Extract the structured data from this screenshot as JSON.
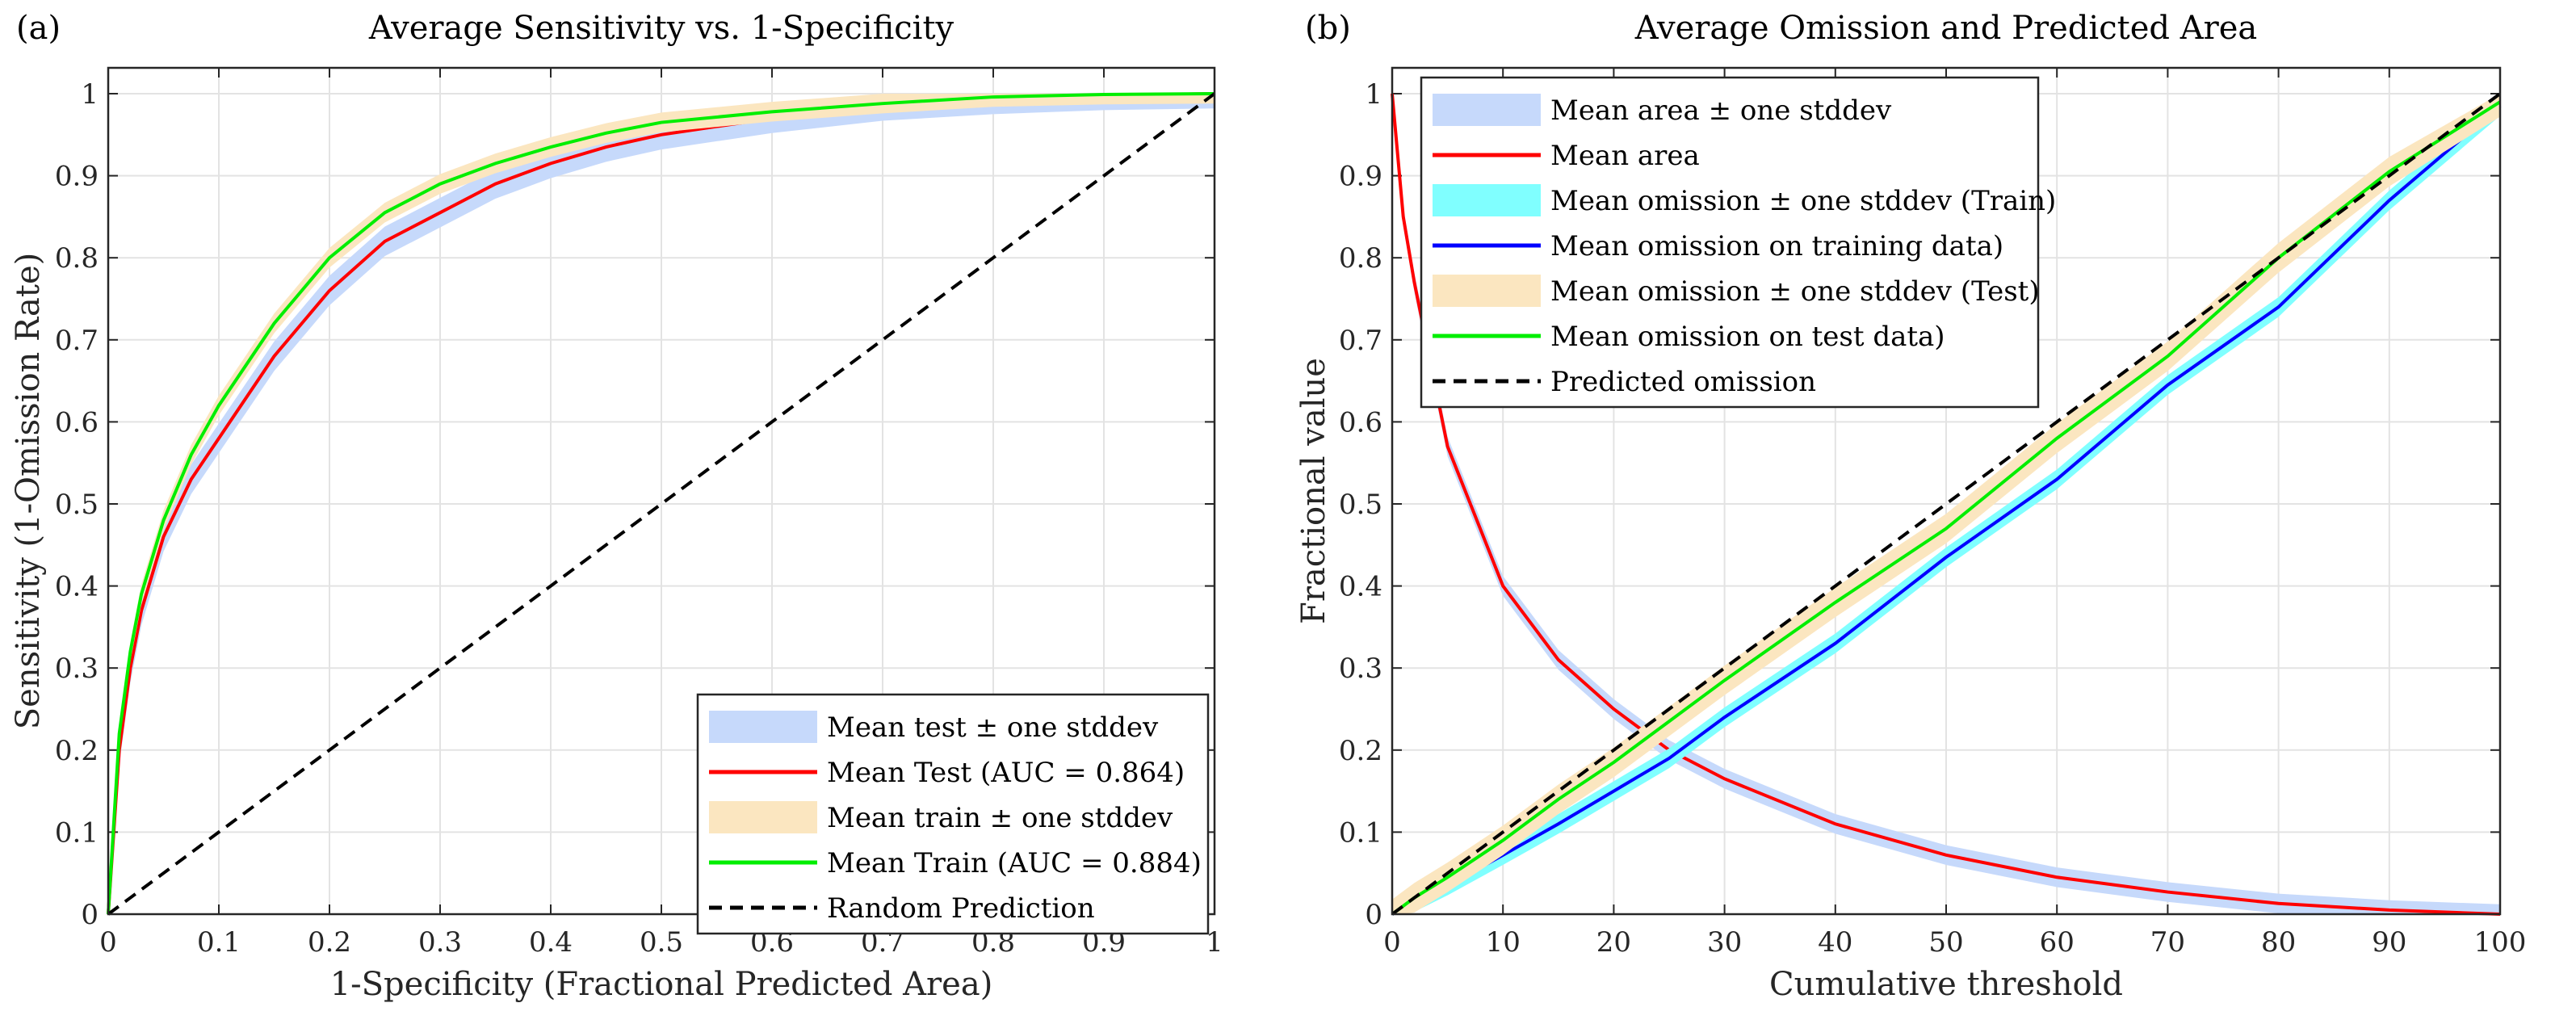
{
  "chart_data": [
    {
      "type": "line",
      "panel_label": "(a)",
      "title": "Average Sensitivity vs. 1-Specificity",
      "xlabel": "1-Specificity (Fractional Predicted Area)",
      "ylabel": "Sensitivity (1-Omission Rate)",
      "xlim": [
        0,
        1
      ],
      "ylim": [
        0,
        1.05
      ],
      "xticks": [
        "0",
        "0.1",
        "0.2",
        "0.3",
        "0.4",
        "0.5",
        "0.6",
        "0.7",
        "0.8",
        "0.9",
        "1"
      ],
      "yticks": [
        "0",
        "0.1",
        "0.2",
        "0.3",
        "0.4",
        "0.5",
        "0.6",
        "0.7",
        "0.8",
        "0.9",
        "1"
      ],
      "grid": true,
      "legend_position": "bottom-right",
      "x": [
        0,
        0.01,
        0.02,
        0.03,
        0.05,
        0.075,
        0.1,
        0.15,
        0.2,
        0.25,
        0.3,
        0.35,
        0.4,
        0.45,
        0.5,
        0.6,
        0.7,
        0.8,
        0.9,
        1
      ],
      "series": [
        {
          "name": "Mean test ± one stddev",
          "kind": "band",
          "color": "#c6d9fb",
          "center": "Mean Test (AUC = 0.864)",
          "halfwidth": 0.018
        },
        {
          "name": "Mean Test (AUC = 0.864)",
          "kind": "line",
          "color": "#ff0000",
          "values": [
            0,
            0.2,
            0.3,
            0.37,
            0.46,
            0.53,
            0.58,
            0.68,
            0.76,
            0.82,
            0.855,
            0.89,
            0.915,
            0.935,
            0.95,
            0.97,
            0.985,
            0.993,
            0.998,
            1
          ]
        },
        {
          "name": "Mean train ± one stddev",
          "kind": "band",
          "color": "#fbe6c0",
          "center": "Mean Train (AUC = 0.884)",
          "halfwidth": 0.012
        },
        {
          "name": "Mean Train (AUC = 0.884)",
          "kind": "line",
          "color": "#00ee00",
          "values": [
            0,
            0.22,
            0.32,
            0.39,
            0.48,
            0.56,
            0.62,
            0.72,
            0.8,
            0.855,
            0.89,
            0.915,
            0.935,
            0.952,
            0.965,
            0.978,
            0.988,
            0.996,
            0.999,
            1
          ]
        },
        {
          "name": "Random Prediction",
          "kind": "dashed",
          "color": "#000000",
          "values": [
            0,
            0.01,
            0.02,
            0.03,
            0.05,
            0.075,
            0.1,
            0.15,
            0.2,
            0.25,
            0.3,
            0.35,
            0.4,
            0.45,
            0.5,
            0.6,
            0.7,
            0.8,
            0.9,
            1
          ]
        }
      ]
    },
    {
      "type": "line",
      "panel_label": "(b)",
      "title": "Average Omission and Predicted Area",
      "xlabel": "Cumulative threshold",
      "ylabel": "Fractional value",
      "xlim": [
        0,
        100
      ],
      "ylim": [
        0,
        1.05
      ],
      "xticks": [
        "0",
        "10",
        "20",
        "30",
        "40",
        "50",
        "60",
        "70",
        "80",
        "90",
        "100"
      ],
      "yticks": [
        "0",
        "0.1",
        "0.2",
        "0.3",
        "0.4",
        "0.5",
        "0.6",
        "0.7",
        "0.8",
        "0.9",
        "1"
      ],
      "grid": true,
      "legend_position": "top-left",
      "x": [
        0,
        1,
        2,
        5,
        10,
        15,
        20,
        25,
        30,
        40,
        50,
        60,
        70,
        80,
        90,
        100
      ],
      "series": [
        {
          "name": "Mean area ± one stddev",
          "kind": "band",
          "color": "#c6d9fb",
          "center": "Mean area",
          "halfwidth": 0.012
        },
        {
          "name": "Mean area",
          "kind": "line",
          "color": "#ff0000",
          "values": [
            1,
            0.85,
            0.77,
            0.57,
            0.4,
            0.31,
            0.25,
            0.2,
            0.165,
            0.11,
            0.072,
            0.045,
            0.027,
            0.013,
            0.005,
            0
          ]
        },
        {
          "name": "Mean omission ± one stddev (Train)",
          "kind": "band",
          "color": "#80ffff",
          "center": "Mean omission on training data)",
          "halfwidth": 0.012
        },
        {
          "name": "Mean omission on training data)",
          "kind": "line",
          "color": "#0000ff",
          "values": [
            0,
            0.008,
            0.015,
            0.035,
            0.072,
            0.11,
            0.15,
            0.19,
            0.24,
            0.33,
            0.435,
            0.53,
            0.645,
            0.74,
            0.87,
            0.985
          ]
        },
        {
          "name": "Mean omission ± one stddev (Test)",
          "kind": "band",
          "color": "#fbe6c0",
          "center": "Mean omission on test data)",
          "halfwidth": 0.018
        },
        {
          "name": "Mean omission on test data)",
          "kind": "line",
          "color": "#00ee00",
          "values": [
            0,
            0.01,
            0.02,
            0.045,
            0.09,
            0.14,
            0.185,
            0.235,
            0.285,
            0.38,
            0.47,
            0.58,
            0.68,
            0.8,
            0.905,
            0.99
          ]
        },
        {
          "name": "Predicted omission",
          "kind": "dashed",
          "color": "#000000",
          "values": [
            0,
            0.01,
            0.02,
            0.05,
            0.1,
            0.15,
            0.2,
            0.25,
            0.3,
            0.4,
            0.5,
            0.6,
            0.7,
            0.8,
            0.9,
            1
          ]
        }
      ]
    }
  ]
}
